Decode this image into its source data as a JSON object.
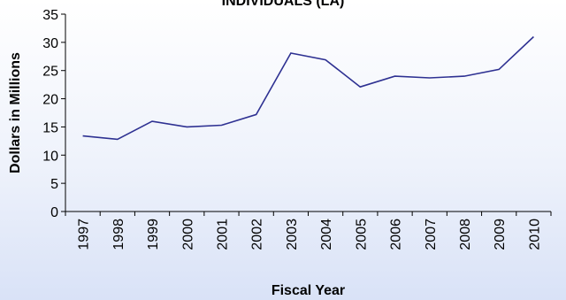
{
  "chart_data": {
    "type": "line",
    "title": "INDIVIDUALS (LA)",
    "xlabel": "Fiscal Year",
    "ylabel": "Dollars in Millions",
    "ylim": [
      0,
      35
    ],
    "yticks": [
      0,
      5,
      10,
      15,
      20,
      25,
      30,
      35
    ],
    "categories": [
      "1997",
      "1998",
      "1999",
      "2000",
      "2001",
      "2002",
      "2003",
      "2004",
      "2005",
      "2006",
      "2007",
      "2008",
      "2009",
      "2010"
    ],
    "values": [
      13.4,
      12.8,
      16.0,
      15.0,
      15.3,
      17.2,
      28.1,
      26.9,
      22.1,
      24.0,
      23.7,
      24.0,
      25.2,
      31.0
    ],
    "grid": false,
    "legend": "none",
    "colors": {
      "line": "#2e3192",
      "axis": "#000000"
    }
  }
}
